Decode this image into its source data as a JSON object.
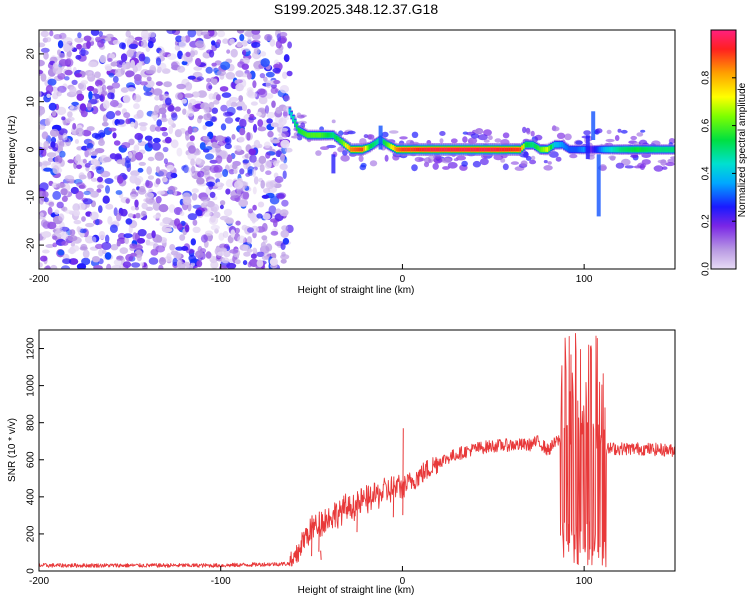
{
  "title": "S199.2025.348.12.37.G18",
  "chart_data": [
    {
      "type": "heatmap",
      "xlabel": "Height of straight line (km)",
      "ylabel": "Frequency (Hz)",
      "xlim": [
        -200,
        150
      ],
      "ylim": [
        -25,
        25
      ],
      "xticks": [
        -200,
        -100,
        0,
        100
      ],
      "yticks": [
        -20,
        -10,
        0,
        10,
        20
      ],
      "noise_region": [
        -200,
        -62
      ],
      "ridge": {
        "x": [
          -62,
          -57,
          -52,
          -45,
          -38,
          -33,
          -28,
          -22,
          -18,
          -12,
          -8,
          -3,
          0,
          5,
          15,
          30,
          50,
          65,
          68,
          72,
          76,
          80,
          84,
          88,
          92,
          96,
          100,
          104,
          108,
          112,
          120,
          130,
          140,
          150
        ],
        "freq": [
          8,
          4,
          3,
          3,
          3,
          1.5,
          0,
          0,
          0.5,
          2,
          1,
          0,
          0,
          0,
          0,
          0,
          0,
          0,
          1,
          1,
          0,
          0,
          1,
          1,
          0,
          0,
          0,
          0,
          0,
          0,
          0,
          0,
          0,
          0
        ],
        "amp": [
          0.4,
          0.55,
          0.6,
          0.6,
          0.5,
          0.6,
          0.85,
          0.9,
          0.55,
          0.45,
          0.6,
          0.85,
          0.9,
          0.9,
          0.95,
          0.95,
          0.95,
          0.9,
          0.55,
          0.5,
          0.6,
          0.7,
          0.4,
          0.35,
          0.3,
          0.3,
          0.35,
          0.2,
          0.3,
          0.4,
          0.5,
          0.55,
          0.5,
          0.5
        ]
      },
      "colorbar": {
        "label": "Normalized spectral amplitude",
        "range": [
          0,
          1
        ],
        "ticks": [
          0.0,
          0.2,
          0.4,
          0.6,
          0.8
        ],
        "tick_labels": [
          "0.0",
          "0.2",
          "0.4",
          "0.6",
          "0.8"
        ]
      }
    },
    {
      "type": "line",
      "xlabel": "Height of straight line (km)",
      "ylabel": "SNR (10 * v/v)",
      "xlim": [
        -200,
        150
      ],
      "ylim": [
        0,
        1300
      ],
      "xticks": [
        -200,
        -100,
        0,
        100
      ],
      "yticks": [
        0,
        200,
        400,
        600,
        800,
        1000,
        1200
      ],
      "color": "#e8393a",
      "envelope": {
        "x": [
          -200,
          -100,
          -60,
          -55,
          -50,
          -40,
          -30,
          -20,
          -10,
          0,
          10,
          20,
          30,
          40,
          50,
          60,
          70,
          75,
          80,
          85,
          90,
          95,
          100,
          105,
          110,
          115,
          130,
          150
        ],
        "y": [
          30,
          30,
          40,
          160,
          230,
          290,
          340,
          380,
          430,
          450,
          520,
          590,
          630,
          660,
          675,
          680,
          680,
          700,
          650,
          700,
          720,
          650,
          650,
          650,
          650,
          660,
          660,
          650
        ]
      },
      "spikes": [
        {
          "x": 0.2,
          "y": 770
        },
        {
          "x": -45,
          "y": 60
        },
        {
          "x": -50,
          "y": 300
        },
        {
          "x": -46,
          "y": 320
        },
        {
          "x": -25,
          "y": 430
        },
        {
          "x": -5,
          "y": 510
        }
      ],
      "oscillation_region": {
        "x_range": [
          87,
          112
        ],
        "y_range": [
          20,
          1300
        ]
      }
    }
  ]
}
